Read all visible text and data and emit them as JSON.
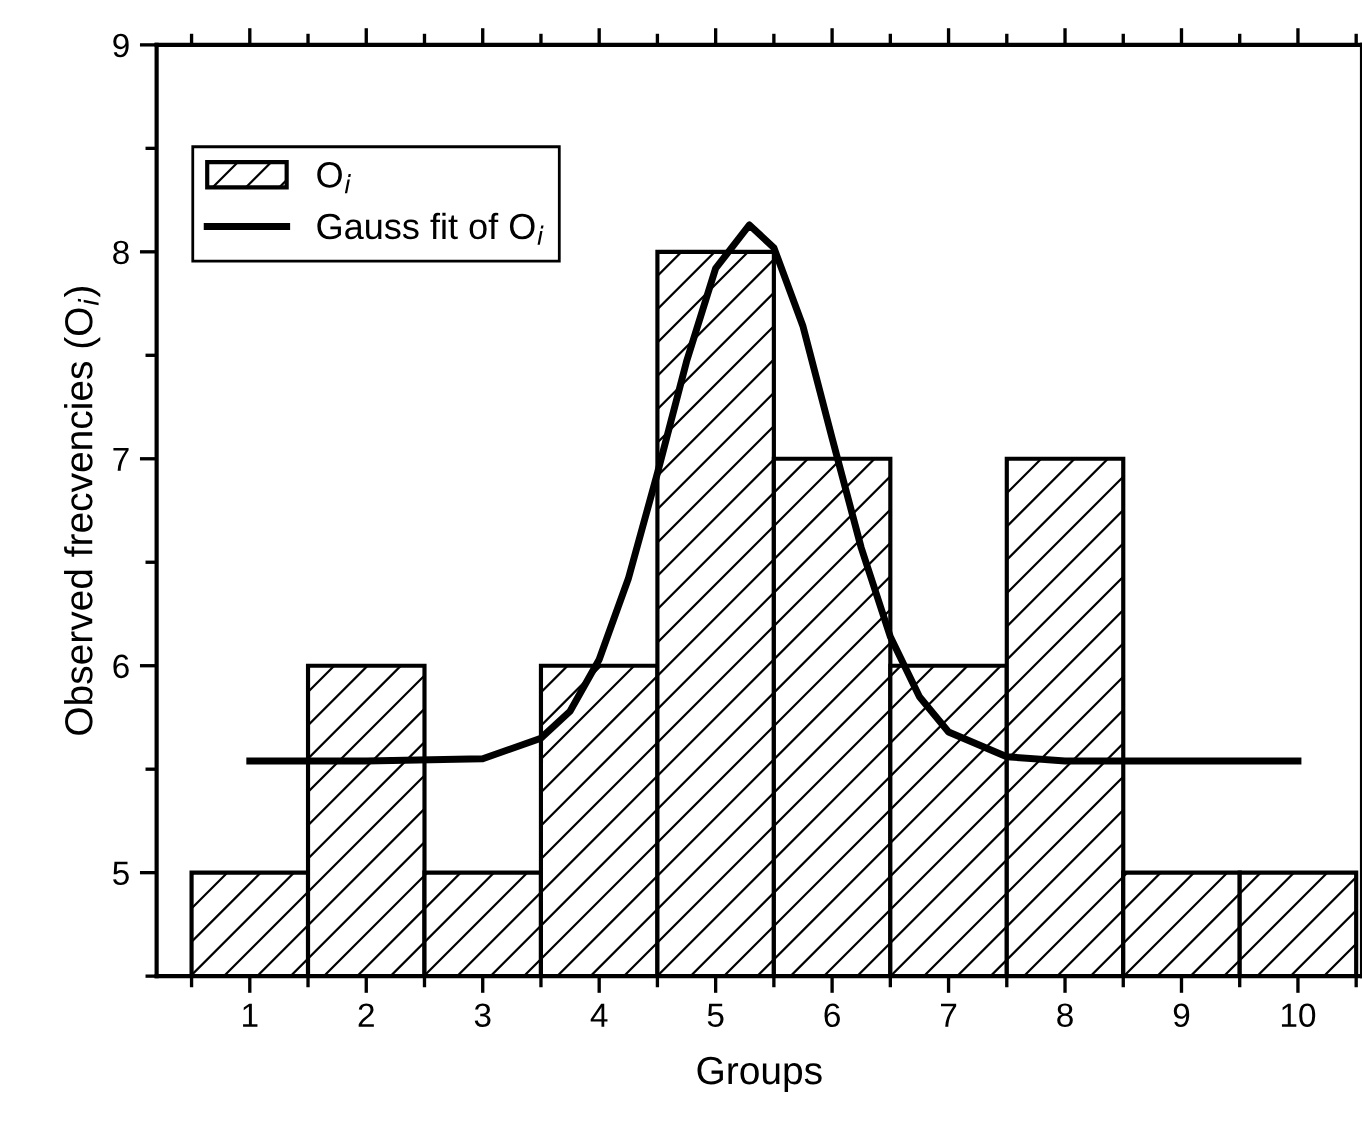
{
  "chart_data": {
    "type": "histogram",
    "xlabel": "Groups",
    "ylabel": "Observed frecvencies (O$_{i}$)",
    "bins": [
      0.5,
      1.5,
      2.5,
      3.5,
      4.5,
      5.5,
      6.5,
      7.5,
      8.5,
      9.5,
      10.5
    ],
    "series": [
      {
        "name": "O$_{i}$",
        "color": "#000000",
        "values": [
          5,
          6,
          5,
          6,
          8,
          7,
          6,
          7,
          5,
          5
        ]
      },
      {
        "type": "line",
        "name": "Gauss fit of O$_{i}$",
        "color": "#000000",
        "x": [
          1,
          2,
          3,
          3.5,
          3.75,
          4,
          4.25,
          4.5,
          4.75,
          5,
          5.29,
          5.5,
          5.75,
          6,
          6.25,
          6.5,
          6.75,
          7,
          7.5,
          8,
          9,
          10
        ],
        "values": [
          5.54,
          5.54,
          5.55,
          5.65,
          5.78,
          6.03,
          6.42,
          6.93,
          7.47,
          7.92,
          8.13,
          8.02,
          7.64,
          7.1,
          6.57,
          6.14,
          5.85,
          5.68,
          5.56,
          5.54,
          5.54,
          5.54
        ]
      }
    ],
    "xlim": [
      0.2,
      10.55
    ],
    "ylim": [
      4.5,
      9
    ],
    "xticks": [
      {
        "value": 0.5,
        "label": null
      },
      1,
      {
        "value": 1.5,
        "label": null
      },
      2,
      {
        "value": 2.5,
        "label": null
      },
      3,
      {
        "value": 3.5,
        "label": null
      },
      4,
      {
        "value": 4.5,
        "label": null
      },
      5,
      {
        "value": 5.5,
        "label": null
      },
      6,
      {
        "value": 6.5,
        "label": null
      },
      7,
      {
        "value": 7.5,
        "label": null
      },
      8,
      {
        "value": 8.5,
        "label": null
      },
      9,
      {
        "value": 9.5,
        "label": null
      },
      10,
      {
        "value": 10.5,
        "label": null
      }
    ],
    "yticks": [
      {
        "value": 4.5,
        "label": null
      },
      5,
      {
        "value": 5.5,
        "label": null
      },
      6,
      {
        "value": 6.5,
        "label": null
      },
      7,
      {
        "value": 7.5,
        "label": null
      },
      8,
      {
        "value": 8.5,
        "label": null
      },
      9
    ],
    "legend": "top left",
    "grid": false
  }
}
